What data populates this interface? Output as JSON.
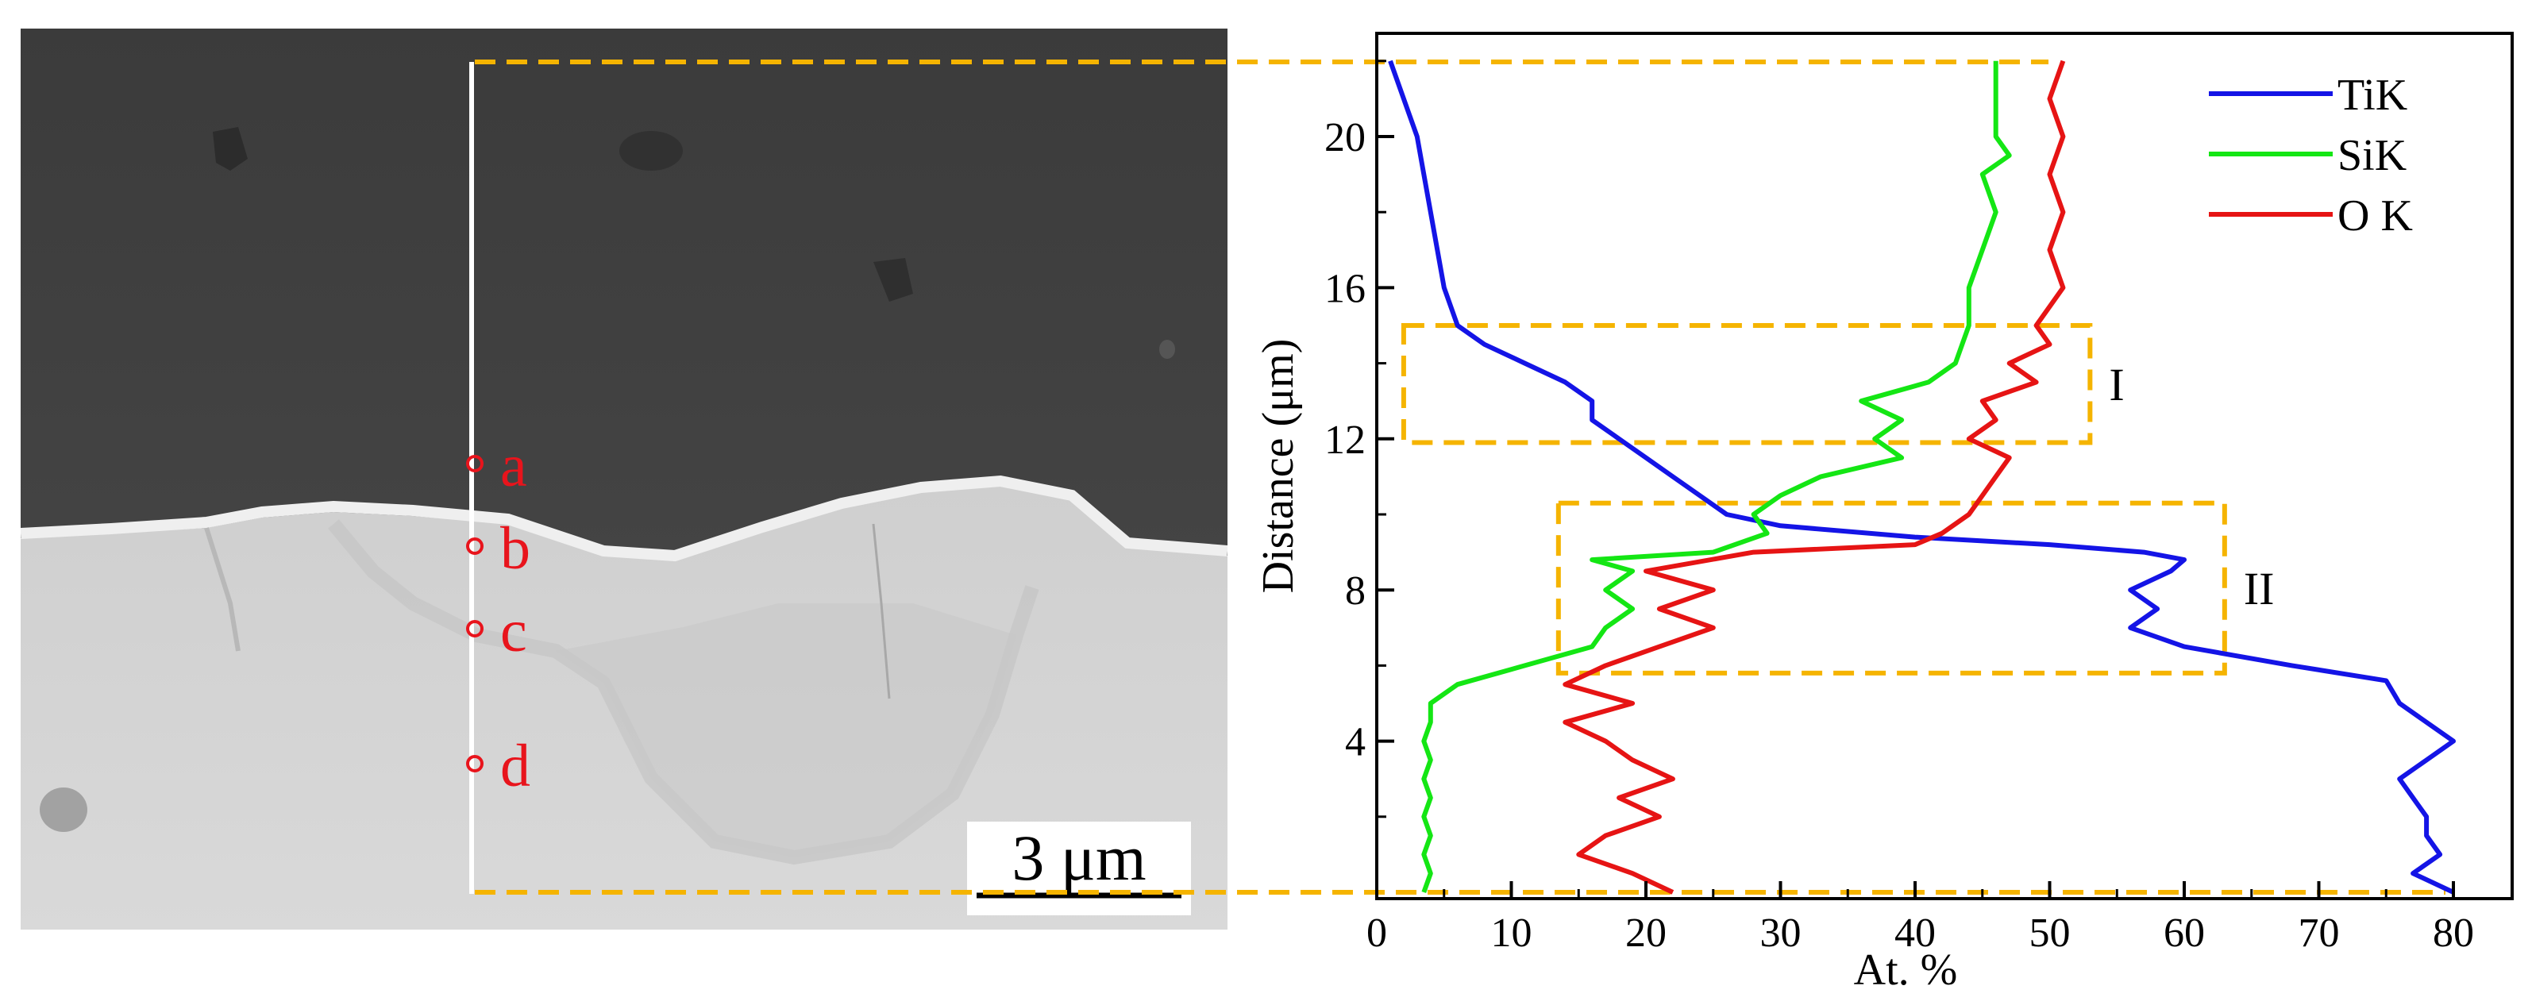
{
  "sem_panel": {
    "scale_bar_label": "3 μm",
    "points": [
      {
        "label": "a"
      },
      {
        "label": "b"
      },
      {
        "label": "c"
      },
      {
        "label": "d"
      }
    ],
    "point_color": "#e8141c",
    "guide_color": "#f5b400"
  },
  "chart_data": {
    "type": "line",
    "xlabel": "At. %",
    "ylabel": "Distance (μm)",
    "xlim": [
      0,
      84
    ],
    "ylim": [
      0,
      22.5
    ],
    "xticks": [
      0,
      10,
      20,
      30,
      40,
      50,
      60,
      70,
      80
    ],
    "yticks": [
      4,
      8,
      12,
      16,
      20
    ],
    "grid": false,
    "legend_position": "top-right",
    "region_labels": [
      "I",
      "II"
    ],
    "regions": [
      {
        "label": "I",
        "x": [
          2,
          53
        ],
        "y": [
          11.9,
          15
        ]
      },
      {
        "label": "II",
        "x": [
          13.5,
          63
        ],
        "y": [
          5.8,
          10.3
        ]
      }
    ],
    "series": [
      {
        "name": "TiK",
        "color": "#1414e6",
        "y": [
          22,
          21,
          20,
          19,
          18,
          17,
          16,
          15,
          14.5,
          14,
          13.5,
          13,
          12.5,
          12,
          11.5,
          11,
          10.5,
          10,
          9.7,
          9.4,
          9.2,
          9.0,
          8.8,
          8.5,
          8.0,
          7.5,
          7.0,
          6.5,
          6.0,
          5.6,
          5.0,
          4.5,
          4.0,
          3.5,
          3.0,
          2.5,
          2.0,
          1.5,
          1.0,
          0.5,
          0.0
        ],
        "x": [
          1,
          2,
          3,
          3.5,
          4,
          4.5,
          5,
          6,
          8,
          11,
          14,
          16,
          16,
          18,
          20,
          22,
          24,
          26,
          30,
          40,
          50,
          57,
          60,
          59,
          56,
          58,
          56,
          60,
          68,
          75,
          76,
          78,
          80,
          78,
          76,
          77,
          78,
          78,
          79,
          77,
          80
        ]
      },
      {
        "name": "SiK",
        "color": "#14e614",
        "y": [
          22,
          21,
          20,
          19.5,
          19,
          18,
          17,
          16,
          15,
          14,
          13.5,
          13,
          12.5,
          12,
          11.5,
          11,
          10.5,
          10,
          9.5,
          9.0,
          8.8,
          8.5,
          8.0,
          7.5,
          7.0,
          6.5,
          6.0,
          5.5,
          5.0,
          4.5,
          4.0,
          3.5,
          3.0,
          2.5,
          2.0,
          1.5,
          1.0,
          0.5,
          0.0
        ],
        "x": [
          46,
          46,
          46,
          47,
          45,
          46,
          45,
          44,
          44,
          43,
          41,
          36,
          39,
          37,
          39,
          33,
          30,
          28,
          29,
          25,
          16,
          19,
          17,
          19,
          17,
          16,
          11,
          6,
          4,
          4,
          3.5,
          4,
          3.5,
          4,
          3.5,
          4,
          3.5,
          4,
          3.5
        ]
      },
      {
        "name": "O K",
        "color": "#e61414",
        "y": [
          22,
          21,
          20,
          19,
          18,
          17,
          16,
          15,
          14.5,
          14,
          13.5,
          13,
          12.5,
          12,
          11.5,
          11,
          10.5,
          10,
          9.5,
          9.2,
          9.0,
          8.5,
          8.0,
          7.5,
          7.0,
          6.5,
          6.0,
          5.5,
          5.0,
          4.5,
          4.0,
          3.5,
          3.0,
          2.5,
          2.0,
          1.5,
          1.0,
          0.5,
          0.0
        ],
        "x": [
          51,
          50,
          51,
          50,
          51,
          50,
          51,
          49,
          50,
          47,
          49,
          45,
          46,
          44,
          47,
          46,
          45,
          44,
          42,
          40,
          28,
          20,
          25,
          21,
          25,
          21,
          17,
          14,
          19,
          14,
          17,
          19,
          22,
          18,
          21,
          17,
          15,
          19,
          22
        ]
      }
    ]
  }
}
